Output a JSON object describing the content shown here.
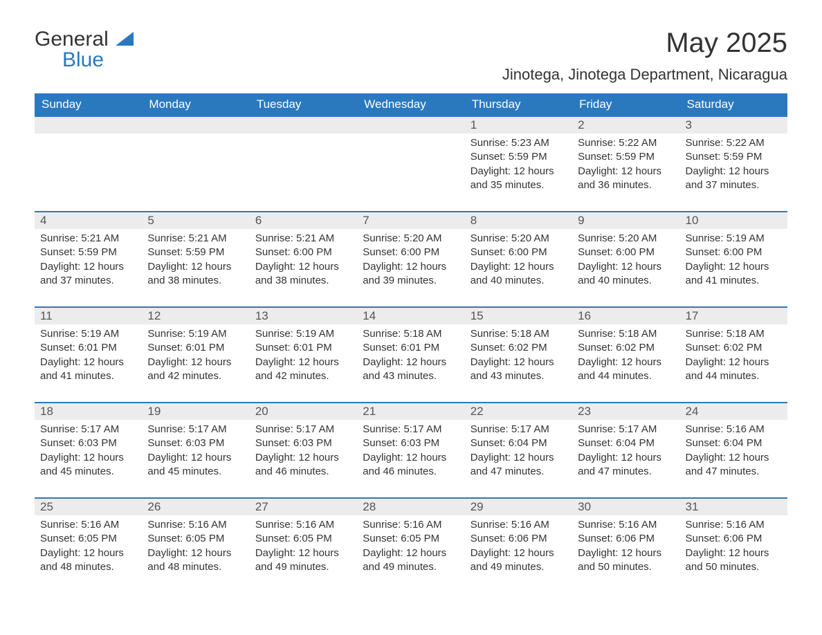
{
  "logo": {
    "general": "General",
    "blue": "Blue"
  },
  "title": "May 2025",
  "subtitle": "Jinotega, Jinotega Department, Nicaragua",
  "colors": {
    "header_bg": "#2a79bf",
    "header_text": "#ffffff",
    "daynum_bg": "#ececec",
    "daynum_border": "#2a79bf",
    "body_text": "#333333",
    "page_bg": "#ffffff"
  },
  "daysOfWeek": [
    "Sunday",
    "Monday",
    "Tuesday",
    "Wednesday",
    "Thursday",
    "Friday",
    "Saturday"
  ],
  "weeks": [
    [
      null,
      null,
      null,
      null,
      {
        "n": "1",
        "sr": "Sunrise: 5:23 AM",
        "ss": "Sunset: 5:59 PM",
        "dl": "Daylight: 12 hours and 35 minutes."
      },
      {
        "n": "2",
        "sr": "Sunrise: 5:22 AM",
        "ss": "Sunset: 5:59 PM",
        "dl": "Daylight: 12 hours and 36 minutes."
      },
      {
        "n": "3",
        "sr": "Sunrise: 5:22 AM",
        "ss": "Sunset: 5:59 PM",
        "dl": "Daylight: 12 hours and 37 minutes."
      }
    ],
    [
      {
        "n": "4",
        "sr": "Sunrise: 5:21 AM",
        "ss": "Sunset: 5:59 PM",
        "dl": "Daylight: 12 hours and 37 minutes."
      },
      {
        "n": "5",
        "sr": "Sunrise: 5:21 AM",
        "ss": "Sunset: 5:59 PM",
        "dl": "Daylight: 12 hours and 38 minutes."
      },
      {
        "n": "6",
        "sr": "Sunrise: 5:21 AM",
        "ss": "Sunset: 6:00 PM",
        "dl": "Daylight: 12 hours and 38 minutes."
      },
      {
        "n": "7",
        "sr": "Sunrise: 5:20 AM",
        "ss": "Sunset: 6:00 PM",
        "dl": "Daylight: 12 hours and 39 minutes."
      },
      {
        "n": "8",
        "sr": "Sunrise: 5:20 AM",
        "ss": "Sunset: 6:00 PM",
        "dl": "Daylight: 12 hours and 40 minutes."
      },
      {
        "n": "9",
        "sr": "Sunrise: 5:20 AM",
        "ss": "Sunset: 6:00 PM",
        "dl": "Daylight: 12 hours and 40 minutes."
      },
      {
        "n": "10",
        "sr": "Sunrise: 5:19 AM",
        "ss": "Sunset: 6:00 PM",
        "dl": "Daylight: 12 hours and 41 minutes."
      }
    ],
    [
      {
        "n": "11",
        "sr": "Sunrise: 5:19 AM",
        "ss": "Sunset: 6:01 PM",
        "dl": "Daylight: 12 hours and 41 minutes."
      },
      {
        "n": "12",
        "sr": "Sunrise: 5:19 AM",
        "ss": "Sunset: 6:01 PM",
        "dl": "Daylight: 12 hours and 42 minutes."
      },
      {
        "n": "13",
        "sr": "Sunrise: 5:19 AM",
        "ss": "Sunset: 6:01 PM",
        "dl": "Daylight: 12 hours and 42 minutes."
      },
      {
        "n": "14",
        "sr": "Sunrise: 5:18 AM",
        "ss": "Sunset: 6:01 PM",
        "dl": "Daylight: 12 hours and 43 minutes."
      },
      {
        "n": "15",
        "sr": "Sunrise: 5:18 AM",
        "ss": "Sunset: 6:02 PM",
        "dl": "Daylight: 12 hours and 43 minutes."
      },
      {
        "n": "16",
        "sr": "Sunrise: 5:18 AM",
        "ss": "Sunset: 6:02 PM",
        "dl": "Daylight: 12 hours and 44 minutes."
      },
      {
        "n": "17",
        "sr": "Sunrise: 5:18 AM",
        "ss": "Sunset: 6:02 PM",
        "dl": "Daylight: 12 hours and 44 minutes."
      }
    ],
    [
      {
        "n": "18",
        "sr": "Sunrise: 5:17 AM",
        "ss": "Sunset: 6:03 PM",
        "dl": "Daylight: 12 hours and 45 minutes."
      },
      {
        "n": "19",
        "sr": "Sunrise: 5:17 AM",
        "ss": "Sunset: 6:03 PM",
        "dl": "Daylight: 12 hours and 45 minutes."
      },
      {
        "n": "20",
        "sr": "Sunrise: 5:17 AM",
        "ss": "Sunset: 6:03 PM",
        "dl": "Daylight: 12 hours and 46 minutes."
      },
      {
        "n": "21",
        "sr": "Sunrise: 5:17 AM",
        "ss": "Sunset: 6:03 PM",
        "dl": "Daylight: 12 hours and 46 minutes."
      },
      {
        "n": "22",
        "sr": "Sunrise: 5:17 AM",
        "ss": "Sunset: 6:04 PM",
        "dl": "Daylight: 12 hours and 47 minutes."
      },
      {
        "n": "23",
        "sr": "Sunrise: 5:17 AM",
        "ss": "Sunset: 6:04 PM",
        "dl": "Daylight: 12 hours and 47 minutes."
      },
      {
        "n": "24",
        "sr": "Sunrise: 5:16 AM",
        "ss": "Sunset: 6:04 PM",
        "dl": "Daylight: 12 hours and 47 minutes."
      }
    ],
    [
      {
        "n": "25",
        "sr": "Sunrise: 5:16 AM",
        "ss": "Sunset: 6:05 PM",
        "dl": "Daylight: 12 hours and 48 minutes."
      },
      {
        "n": "26",
        "sr": "Sunrise: 5:16 AM",
        "ss": "Sunset: 6:05 PM",
        "dl": "Daylight: 12 hours and 48 minutes."
      },
      {
        "n": "27",
        "sr": "Sunrise: 5:16 AM",
        "ss": "Sunset: 6:05 PM",
        "dl": "Daylight: 12 hours and 49 minutes."
      },
      {
        "n": "28",
        "sr": "Sunrise: 5:16 AM",
        "ss": "Sunset: 6:05 PM",
        "dl": "Daylight: 12 hours and 49 minutes."
      },
      {
        "n": "29",
        "sr": "Sunrise: 5:16 AM",
        "ss": "Sunset: 6:06 PM",
        "dl": "Daylight: 12 hours and 49 minutes."
      },
      {
        "n": "30",
        "sr": "Sunrise: 5:16 AM",
        "ss": "Sunset: 6:06 PM",
        "dl": "Daylight: 12 hours and 50 minutes."
      },
      {
        "n": "31",
        "sr": "Sunrise: 5:16 AM",
        "ss": "Sunset: 6:06 PM",
        "dl": "Daylight: 12 hours and 50 minutes."
      }
    ]
  ]
}
